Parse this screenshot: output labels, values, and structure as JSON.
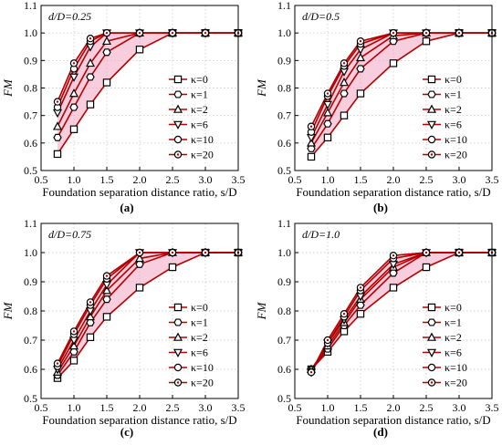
{
  "chart_data": [
    {
      "type": "line",
      "panel_label": "(a)",
      "annotation": "d/D=0.25",
      "xlabel": "Foundation separation distance ratio, s/D",
      "ylabel": "FM",
      "xlim": [
        0.5,
        3.5
      ],
      "ylim": [
        0.5,
        1.1
      ],
      "xticks": [
        "0.5",
        "1.0",
        "1.5",
        "2.0",
        "2.5",
        "3.0",
        "3.5"
      ],
      "yticks": [
        "0.5",
        "0.6",
        "0.7",
        "0.8",
        "0.9",
        "1.0",
        "1.1"
      ],
      "grid": true,
      "legend_position": "right",
      "x": [
        0.75,
        1.0,
        1.25,
        1.5,
        2.0,
        2.5,
        3.0,
        3.5
      ],
      "series": [
        {
          "name": "κ=0",
          "marker": "square",
          "values": [
            0.56,
            0.65,
            0.74,
            0.82,
            0.94,
            1.0,
            1.0,
            1.0
          ]
        },
        {
          "name": "κ=1",
          "marker": "hexagon",
          "values": [
            0.62,
            0.73,
            0.84,
            0.93,
            1.0,
            1.0,
            1.0,
            1.0
          ]
        },
        {
          "name": "κ=2",
          "marker": "triangle-up",
          "values": [
            0.66,
            0.78,
            0.89,
            0.97,
            1.0,
            1.0,
            1.0,
            1.0
          ]
        },
        {
          "name": "κ=6",
          "marker": "triangle-down",
          "values": [
            0.71,
            0.84,
            0.95,
            1.0,
            1.0,
            1.0,
            1.0,
            1.0
          ]
        },
        {
          "name": "κ=10",
          "marker": "circle",
          "values": [
            0.73,
            0.87,
            0.97,
            1.0,
            1.0,
            1.0,
            1.0,
            1.0
          ]
        },
        {
          "name": "κ=20",
          "marker": "circle-dot",
          "values": [
            0.75,
            0.89,
            0.98,
            1.0,
            1.0,
            1.0,
            1.0,
            1.0
          ]
        }
      ]
    },
    {
      "type": "line",
      "panel_label": "(b)",
      "annotation": "d/D=0.5",
      "xlabel": "Foundation separation distance ratio, s/D",
      "ylabel": "FM",
      "xlim": [
        0.5,
        3.5
      ],
      "ylim": [
        0.5,
        1.1
      ],
      "xticks": [
        "0.5",
        "1.0",
        "1.5",
        "2.0",
        "2.5",
        "3.0",
        "3.5"
      ],
      "yticks": [
        "0.5",
        "0.6",
        "0.7",
        "0.8",
        "0.9",
        "1.0",
        "1.1"
      ],
      "grid": true,
      "legend_position": "right",
      "x": [
        0.75,
        1.0,
        1.25,
        1.5,
        2.0,
        2.5,
        3.0,
        3.5
      ],
      "series": [
        {
          "name": "κ=0",
          "marker": "square",
          "values": [
            0.55,
            0.62,
            0.7,
            0.78,
            0.89,
            0.97,
            1.0,
            1.0
          ]
        },
        {
          "name": "κ=1",
          "marker": "hexagon",
          "values": [
            0.58,
            0.67,
            0.78,
            0.87,
            0.97,
            1.0,
            1.0,
            1.0
          ]
        },
        {
          "name": "κ=2",
          "marker": "triangle-up",
          "values": [
            0.6,
            0.71,
            0.82,
            0.91,
            0.99,
            1.0,
            1.0,
            1.0
          ]
        },
        {
          "name": "κ=6",
          "marker": "triangle-down",
          "values": [
            0.62,
            0.74,
            0.86,
            0.94,
            1.0,
            1.0,
            1.0,
            1.0
          ]
        },
        {
          "name": "κ=10",
          "marker": "circle",
          "values": [
            0.64,
            0.77,
            0.88,
            0.96,
            1.0,
            1.0,
            1.0,
            1.0
          ]
        },
        {
          "name": "κ=20",
          "marker": "circle-dot",
          "values": [
            0.66,
            0.78,
            0.89,
            0.97,
            1.0,
            1.0,
            1.0,
            1.0
          ]
        }
      ]
    },
    {
      "type": "line",
      "panel_label": "(c)",
      "annotation": "d/D=0.75",
      "xlabel": "Foundation separation distance ratio, s/D",
      "ylabel": "FM",
      "xlim": [
        0.5,
        3.5
      ],
      "ylim": [
        0.5,
        1.1
      ],
      "xticks": [
        "0.5",
        "1.0",
        "1.5",
        "2.0",
        "2.5",
        "3.0",
        "3.5"
      ],
      "yticks": [
        "0.5",
        "0.6",
        "0.7",
        "0.8",
        "0.9",
        "1.0",
        "1.1"
      ],
      "grid": true,
      "legend_position": "right",
      "x": [
        0.75,
        1.0,
        1.25,
        1.5,
        2.0,
        2.5,
        3.0,
        3.5
      ],
      "series": [
        {
          "name": "κ=0",
          "marker": "square",
          "values": [
            0.57,
            0.63,
            0.71,
            0.78,
            0.88,
            0.95,
            1.0,
            1.0
          ]
        },
        {
          "name": "κ=1",
          "marker": "hexagon",
          "values": [
            0.58,
            0.66,
            0.76,
            0.84,
            0.96,
            1.0,
            1.0,
            1.0
          ]
        },
        {
          "name": "κ=2",
          "marker": "triangle-up",
          "values": [
            0.59,
            0.68,
            0.78,
            0.87,
            0.98,
            1.0,
            1.0,
            1.0
          ]
        },
        {
          "name": "κ=6",
          "marker": "triangle-down",
          "values": [
            0.6,
            0.7,
            0.8,
            0.89,
            1.0,
            1.0,
            1.0,
            1.0
          ]
        },
        {
          "name": "κ=10",
          "marker": "circle",
          "values": [
            0.61,
            0.72,
            0.82,
            0.91,
            1.0,
            1.0,
            1.0,
            1.0
          ]
        },
        {
          "name": "κ=20",
          "marker": "circle-dot",
          "values": [
            0.62,
            0.73,
            0.83,
            0.92,
            1.0,
            1.0,
            1.0,
            1.0
          ]
        }
      ]
    },
    {
      "type": "line",
      "panel_label": "(d)",
      "annotation": "d/D=1.0",
      "xlabel": "Foundation separation distance ratio, s/D",
      "ylabel": "FM",
      "xlim": [
        0.5,
        3.5
      ],
      "ylim": [
        0.5,
        1.1
      ],
      "xticks": [
        "0.5",
        "1.0",
        "1.5",
        "2.0",
        "2.5",
        "3.0",
        "3.5"
      ],
      "yticks": [
        "0.5",
        "0.6",
        "0.7",
        "0.8",
        "0.9",
        "1.0",
        "1.1"
      ],
      "grid": true,
      "legend_position": "right",
      "x": [
        0.75,
        1.0,
        1.25,
        1.5,
        2.0,
        2.5,
        3.0,
        3.5
      ],
      "series": [
        {
          "name": "κ=0",
          "marker": "square",
          "values": [
            0.6,
            0.66,
            0.73,
            0.79,
            0.88,
            0.95,
            1.0,
            1.0
          ]
        },
        {
          "name": "κ=1",
          "marker": "hexagon",
          "values": [
            0.6,
            0.67,
            0.75,
            0.82,
            0.93,
            1.0,
            1.0,
            1.0
          ]
        },
        {
          "name": "κ=2",
          "marker": "triangle-up",
          "values": [
            0.6,
            0.68,
            0.76,
            0.84,
            0.95,
            1.0,
            1.0,
            1.0
          ]
        },
        {
          "name": "κ=6",
          "marker": "triangle-down",
          "values": [
            0.59,
            0.69,
            0.77,
            0.85,
            0.96,
            1.0,
            1.0,
            1.0
          ]
        },
        {
          "name": "κ=10",
          "marker": "circle",
          "values": [
            0.59,
            0.69,
            0.78,
            0.87,
            0.98,
            1.0,
            1.0,
            1.0
          ]
        },
        {
          "name": "κ=20",
          "marker": "circle-dot",
          "values": [
            0.59,
            0.7,
            0.79,
            0.88,
            0.99,
            1.0,
            1.0,
            1.0
          ]
        }
      ]
    }
  ],
  "colors": {
    "line": "#b30000",
    "band": "#f2a6c2",
    "marker_stroke": "#000000",
    "grid": "#bfbfbf"
  }
}
